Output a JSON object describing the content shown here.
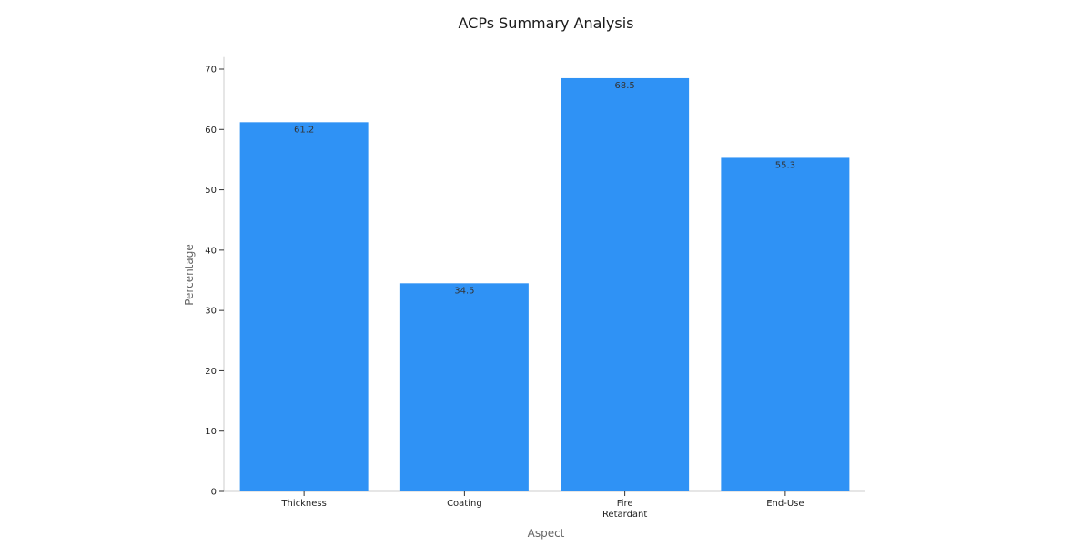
{
  "chart_data": {
    "type": "bar",
    "title": "ACPs Summary Analysis",
    "xlabel": "Aspect",
    "ylabel": "Percentage",
    "categories": [
      "Thickness",
      "Coating",
      "Fire\nRetardant",
      "End-Use"
    ],
    "values": [
      61.2,
      34.5,
      68.5,
      55.3
    ],
    "data_labels": [
      "61.2",
      "34.5",
      "68.5",
      "55.3"
    ],
    "yticks": [
      0,
      10,
      20,
      30,
      40,
      50,
      60,
      70
    ],
    "ylim": [
      0,
      72
    ],
    "bar_color": "#2f92f5",
    "grid": false,
    "legend": "none"
  }
}
